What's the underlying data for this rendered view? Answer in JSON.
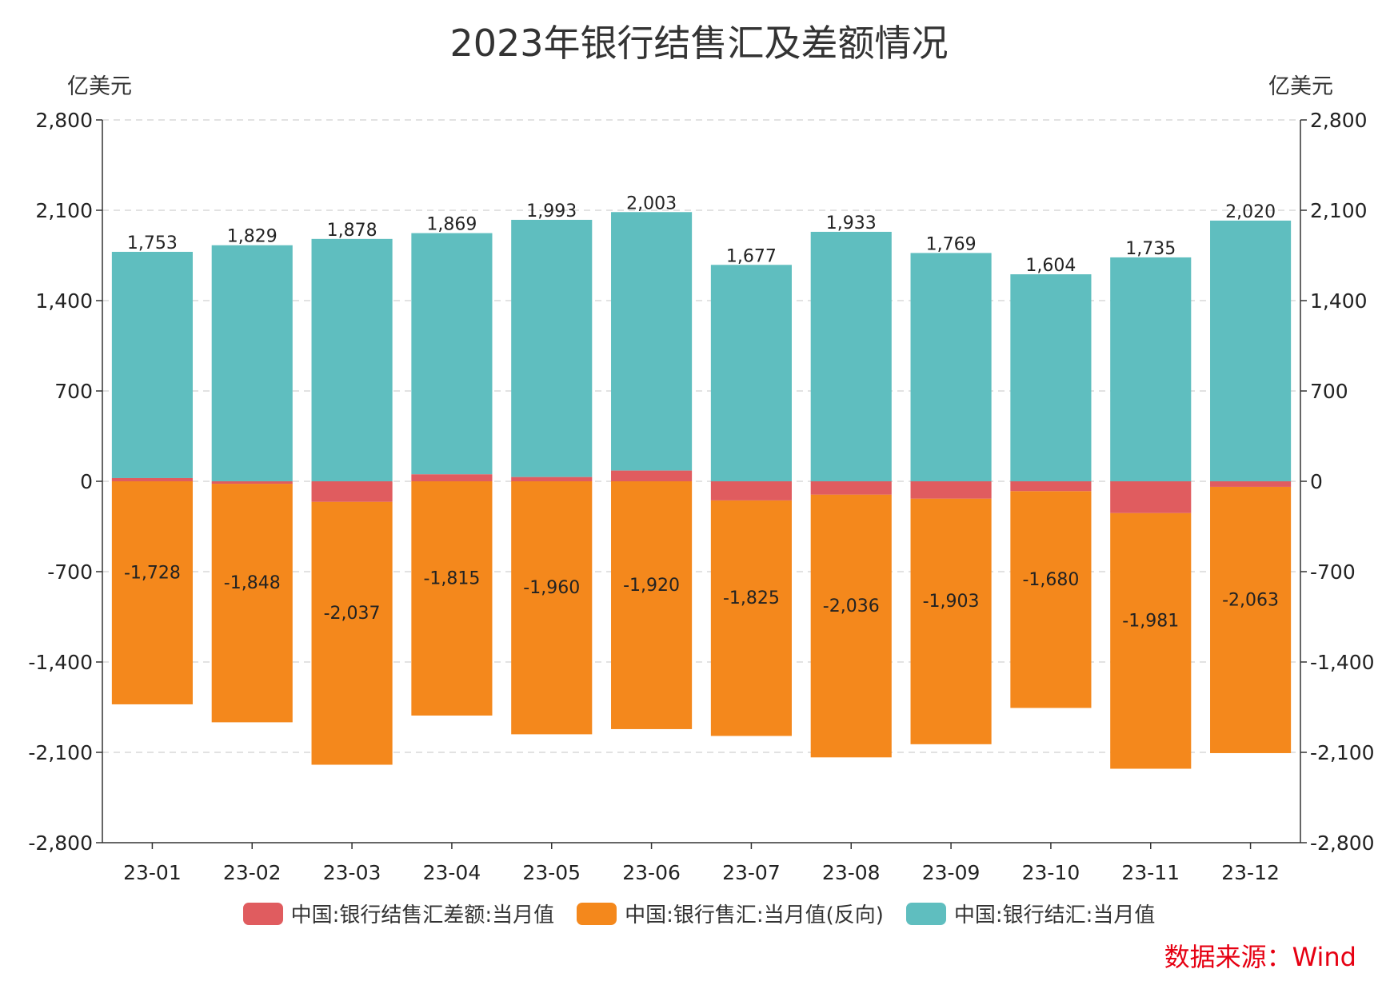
{
  "title": "2023年银行结售汇及差额情况",
  "unit_left": "亿美元",
  "unit_right": "亿美元",
  "source": "数据来源：Wind",
  "colors": {
    "diff": "#e05c5f",
    "sell": "#f4881c",
    "buy": "#5fbebf",
    "axis": "#333333",
    "grid": "#d9d9d9"
  },
  "legend": [
    {
      "label": "中国:银行结售汇差额:当月值",
      "color": "#e05c5f"
    },
    {
      "label": "中国:银行售汇:当月值(反向)",
      "color": "#f4881c"
    },
    {
      "label": "中国:银行结汇:当月值",
      "color": "#5fbebf"
    }
  ],
  "chart_data": {
    "type": "bar",
    "categories": [
      "23-01",
      "23-02",
      "23-03",
      "23-04",
      "23-05",
      "23-06",
      "23-07",
      "23-08",
      "23-09",
      "23-10",
      "23-11",
      "23-12"
    ],
    "series": [
      {
        "name": "中国:银行结售汇差额:当月值",
        "values": [
          25,
          -19,
          -159,
          54,
          33,
          83,
          -148,
          -103,
          -134,
          -76,
          -246,
          -43
        ]
      },
      {
        "name": "中国:银行售汇:当月值(反向)",
        "values": [
          -1728,
          -1848,
          -2037,
          -1815,
          -1960,
          -1920,
          -1825,
          -2036,
          -1903,
          -1680,
          -1981,
          -2063
        ]
      },
      {
        "name": "中国:银行结汇:当月值",
        "values": [
          1753,
          1829,
          1878,
          1869,
          1993,
          2003,
          1677,
          1933,
          1769,
          1604,
          1735,
          2020
        ]
      }
    ],
    "bar_labels_top": [
      "1,753",
      "1,829",
      "1,878",
      "1,869",
      "1,993",
      "2,003",
      "1,677",
      "1,933",
      "1,769",
      "1,604",
      "1,735",
      "2,020"
    ],
    "bar_labels_bottom": [
      "-1,728",
      "-1,848",
      "-2,037",
      "-1,815",
      "-1,960",
      "-1,920",
      "-1,825",
      "-2,036",
      "-1,903",
      "-1,680",
      "-1,981",
      "-2,063"
    ],
    "ylim": [
      -2800,
      2800
    ],
    "yticks": [
      2800,
      2100,
      1400,
      700,
      0,
      -700,
      -1400,
      -2100,
      -2800
    ],
    "ytick_labels": [
      "2,800",
      "2,100",
      "1,400",
      "700",
      "0",
      "-700",
      "-1,400",
      "-2,100",
      "-2,800"
    ],
    "grid": true,
    "legend_position": "bottom"
  }
}
